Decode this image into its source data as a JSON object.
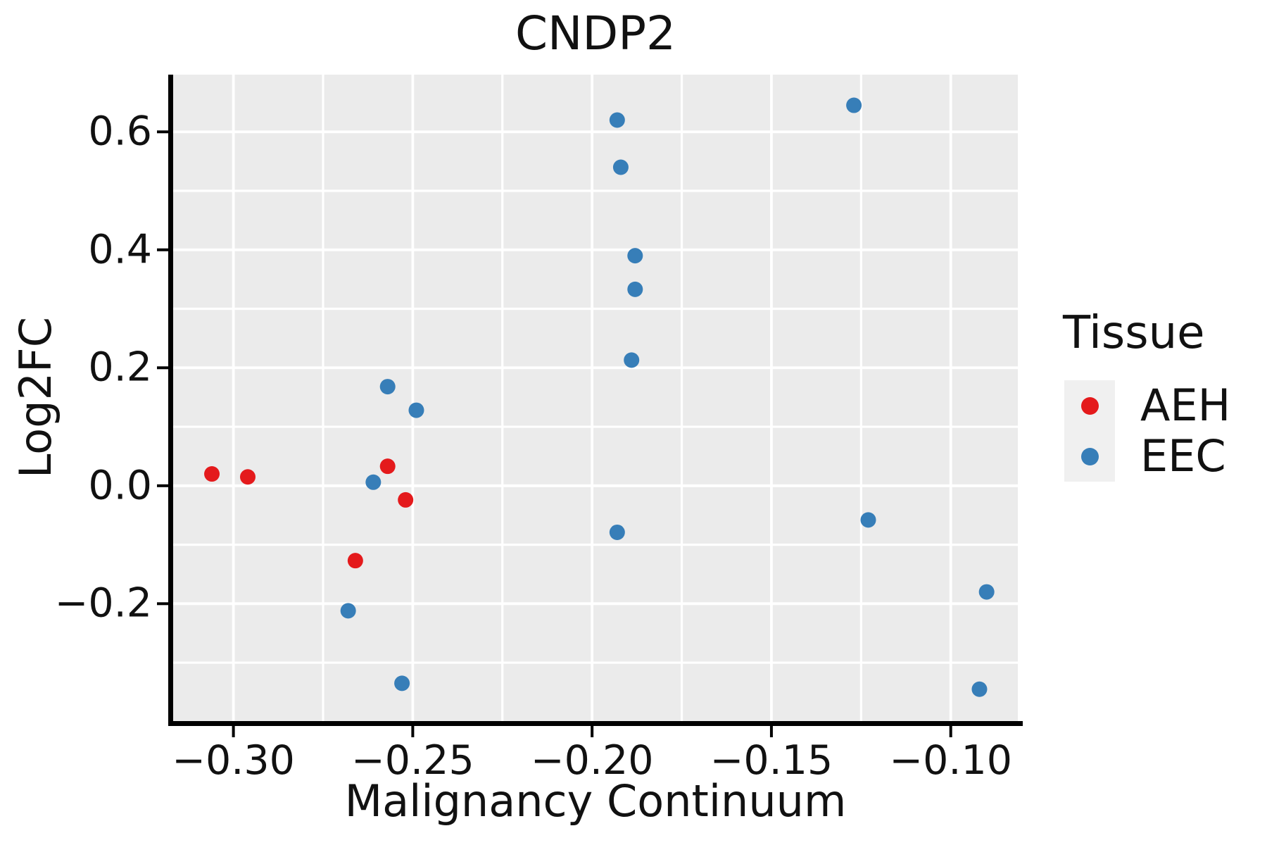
{
  "chart_data": {
    "type": "scatter",
    "title": "CNDP2",
    "xlabel": "Malignancy Continuum",
    "ylabel": "Log2FC",
    "legend_title": "Tissue",
    "legend_position": "right",
    "grid": "white major and minor gridlines on gray panel",
    "xlim": [
      -0.3168,
      -0.0813
    ],
    "ylim": [
      -0.399,
      0.697
    ],
    "x_ticks": [
      {
        "label": "−0.30",
        "value": -0.3
      },
      {
        "label": "−0.25",
        "value": -0.25
      },
      {
        "label": "−0.20",
        "value": -0.2
      },
      {
        "label": "−0.15",
        "value": -0.15
      },
      {
        "label": "−0.10",
        "value": -0.1
      }
    ],
    "y_ticks": [
      {
        "label": "0.6",
        "value": 0.6
      },
      {
        "label": "0.4",
        "value": 0.4
      },
      {
        "label": "0.2",
        "value": 0.2
      },
      {
        "label": "0.0",
        "value": 0.0
      },
      {
        "label": "−0.2",
        "value": -0.2
      }
    ],
    "x_minor_gridlines": [
      -0.275,
      -0.225,
      -0.175,
      -0.125
    ],
    "y_minor_gridlines": [
      0.5,
      0.3,
      0.1,
      -0.1,
      -0.3
    ],
    "series": [
      {
        "name": "AEH",
        "color": "#e41a1c",
        "points": [
          [
            -0.306,
            0.02
          ],
          [
            -0.296,
            0.015
          ],
          [
            -0.257,
            0.033
          ],
          [
            -0.252,
            -0.024
          ],
          [
            -0.266,
            -0.127
          ]
        ]
      },
      {
        "name": "EEC",
        "color": "#377eb8",
        "points": [
          [
            -0.257,
            0.168
          ],
          [
            -0.249,
            0.128
          ],
          [
            -0.261,
            0.006
          ],
          [
            -0.268,
            -0.212
          ],
          [
            -0.253,
            -0.335
          ],
          [
            -0.193,
            0.62
          ],
          [
            -0.192,
            0.54
          ],
          [
            -0.188,
            0.39
          ],
          [
            -0.188,
            0.333
          ],
          [
            -0.189,
            0.213
          ],
          [
            -0.193,
            -0.079
          ],
          [
            -0.127,
            0.645
          ],
          [
            -0.123,
            -0.058
          ],
          [
            -0.09,
            -0.18
          ],
          [
            -0.092,
            -0.345
          ]
        ]
      }
    ]
  },
  "legend": {
    "title": "Tissue",
    "entries": [
      {
        "label": "AEH",
        "color": "#e41a1c"
      },
      {
        "label": "EEC",
        "color": "#377eb8"
      }
    ]
  },
  "style": {
    "panel_bg": "#ebebeb",
    "grid_color": "#ffffff",
    "spine_color": "#000000",
    "text_color": "#111111",
    "legend_key_bg": "#f0f0f0",
    "marker_radius": 11,
    "legend_marker_radius": 12.5
  }
}
